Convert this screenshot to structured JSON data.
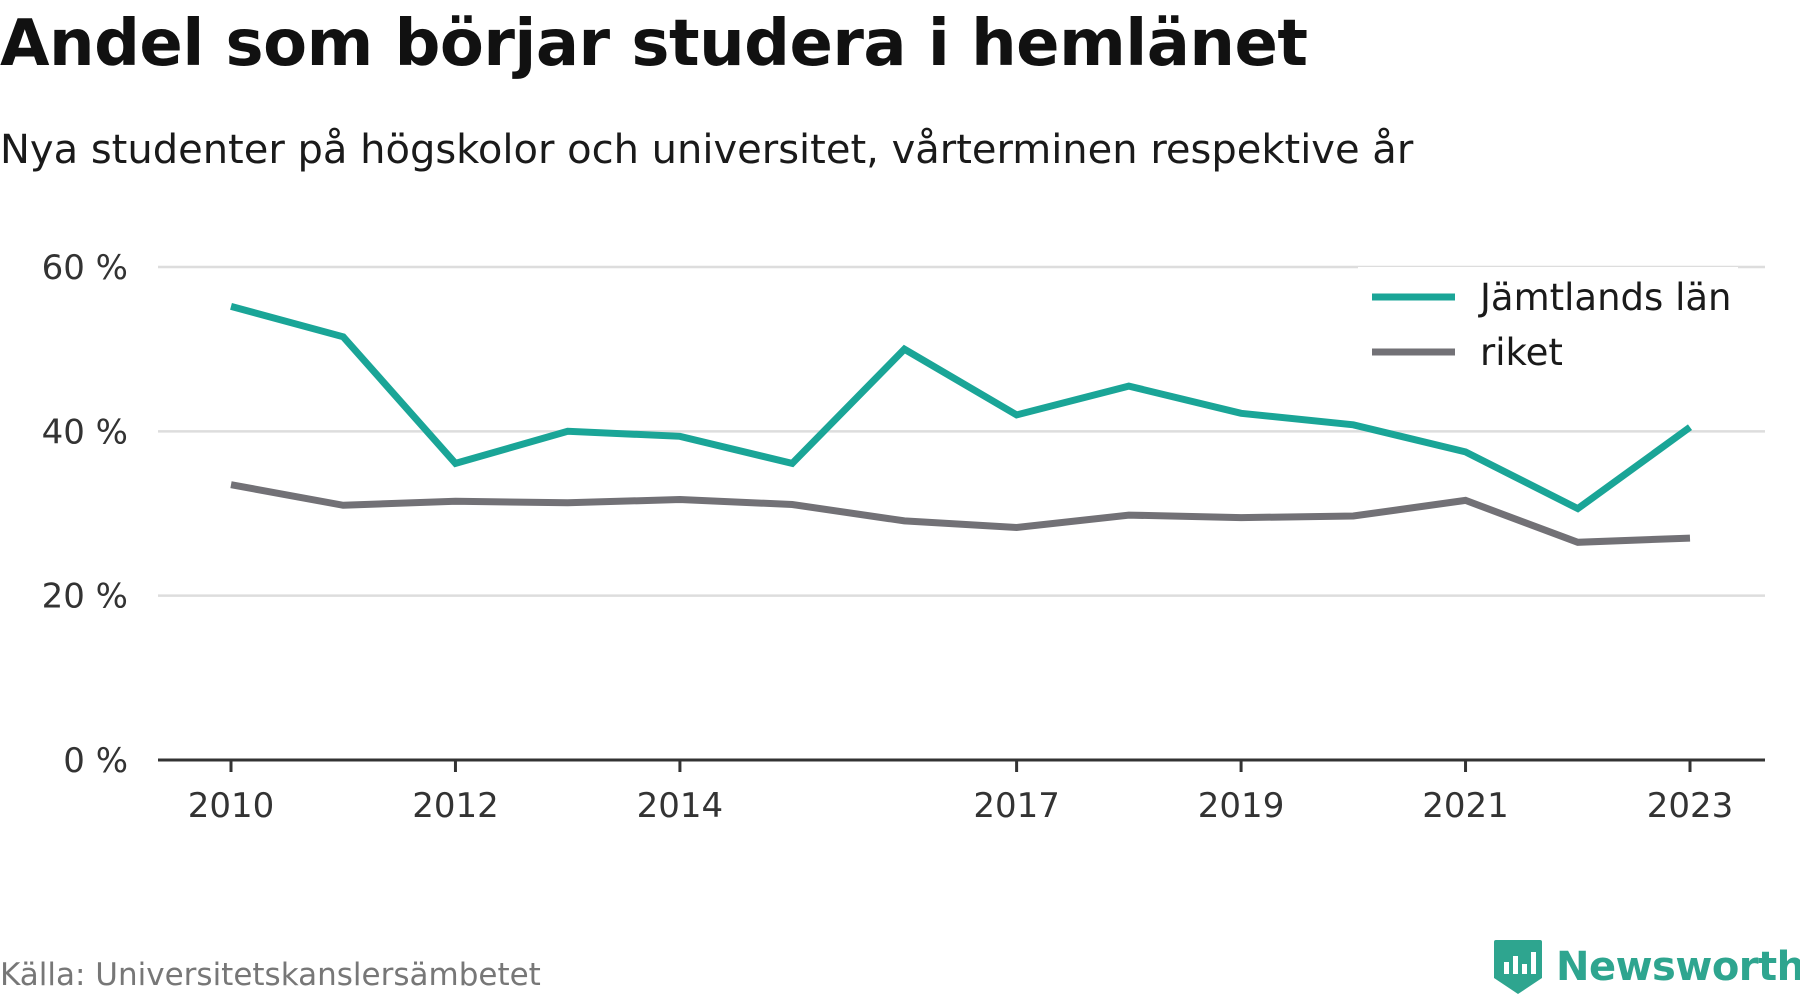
{
  "title": "Andel som börjar studera i hemlänet",
  "subtitle": "Nya studenter på högskolor och universitet, vårterminen respektive år",
  "source": "Källa: Universitetskanslersämbetet",
  "brand": {
    "name": "Newsworthy",
    "icon": "newsworthy-logo-icon",
    "color": "#2ea58f"
  },
  "chart_data": {
    "type": "line",
    "x": [
      2010,
      2011,
      2012,
      2013,
      2014,
      2015,
      2016,
      2017,
      2018,
      2019,
      2020,
      2021,
      2022,
      2023
    ],
    "x_tick_labels": [
      "2010",
      "2012",
      "2014",
      "2017",
      "2019",
      "2021",
      "2023"
    ],
    "x_tick_values": [
      2010,
      2012,
      2014,
      2017,
      2019,
      2021,
      2023
    ],
    "y_tick_labels": [
      "60 %",
      "40 %",
      "20 %",
      "0 %"
    ],
    "y_tick_values": [
      60,
      40,
      20,
      0
    ],
    "ylim": [
      0,
      60
    ],
    "xlim": [
      2010,
      2023
    ],
    "grid": "horizontal",
    "legend_position": "top-right",
    "series": [
      {
        "name": "Jämtlands län",
        "color": "#1aa597",
        "values": [
          55.2,
          51.5,
          36.1,
          40.0,
          39.4,
          36.1,
          50.0,
          42.0,
          45.5,
          42.2,
          40.8,
          37.5,
          30.6,
          40.5
        ]
      },
      {
        "name": "riket",
        "color": "#727176",
        "values": [
          33.5,
          31.0,
          31.5,
          31.3,
          31.7,
          31.1,
          29.1,
          28.3,
          29.8,
          29.5,
          29.7,
          31.6,
          26.5,
          27.0
        ]
      }
    ]
  }
}
